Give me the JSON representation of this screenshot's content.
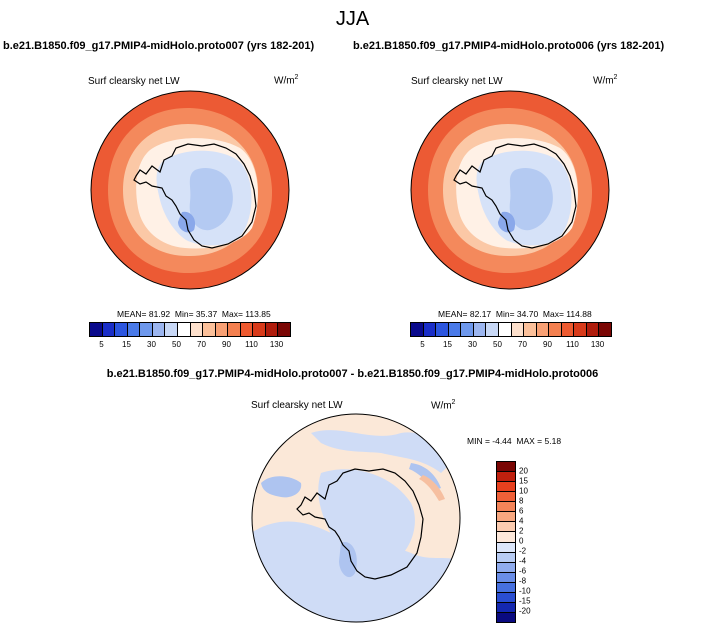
{
  "season": "JJA",
  "units_base": "W/m",
  "units_exp": "2",
  "variable": "Surf clearsky net LW",
  "panels": [
    {
      "case": "b.e21.B1850.f09_g17.PMIP4-midHolo.proto007 (yrs 182-201)",
      "mean": "MEAN=  81.92",
      "min": "Min=  35.37",
      "max": "Max= 113.85"
    },
    {
      "case": "b.e21.B1850.f09_g17.PMIP4-midHolo.proto006 (yrs 182-201)",
      "mean": "MEAN=  82.17",
      "min": "Min=  34.70",
      "max": "Max= 114.88"
    }
  ],
  "diff": {
    "title": "b.e21.B1850.f09_g17.PMIP4-midHolo.proto007 - b.e21.B1850.f09_g17.PMIP4-midHolo.proto006",
    "min": "MIN =  -4.44",
    "max": "MAX =  5.18"
  },
  "colorbar_main": {
    "labels": [
      "5",
      "15",
      "30",
      "50",
      "70",
      "90",
      "110",
      "130"
    ],
    "colors": [
      "#0a0a8c",
      "#1a2ec8",
      "#2c56e0",
      "#4a7ae8",
      "#6e98ec",
      "#9cb6f0",
      "#c8d8f6",
      "#ffffff",
      "#fde0cc",
      "#fbc09a",
      "#f8a074",
      "#f48050",
      "#ee5a30",
      "#d83a1a",
      "#b01c0c",
      "#7a0604"
    ]
  },
  "colorbar_diff": {
    "labels": [
      "20",
      "15",
      "10",
      "8",
      "6",
      "4",
      "2",
      "0",
      "-2",
      "-4",
      "-6",
      "-8",
      "-10",
      "-15",
      "-20"
    ],
    "colors": [
      "#7a0604",
      "#c0200e",
      "#e8401e",
      "#f06038",
      "#f48458",
      "#f8a880",
      "#fcccb0",
      "#fde8da",
      "#dce6fa",
      "#b8ccf4",
      "#90acee",
      "#6a8ee8",
      "#4670e0",
      "#2a4ed2",
      "#1428b0",
      "#0a0a80"
    ]
  },
  "map_colors": {
    "outer": "#ec5a34",
    "ring2": "#f4895c",
    "ring3": "#fbc8a6",
    "near_white": "#fff1e6",
    "ice_light": "#d6e2f8",
    "ice_mid": "#b4caf2",
    "ice_dark": "#8aa8ea",
    "diff_bg": "#fbe8d8",
    "diff_blue": "#cfdcf6",
    "diff_mid": "#aec4f0"
  }
}
